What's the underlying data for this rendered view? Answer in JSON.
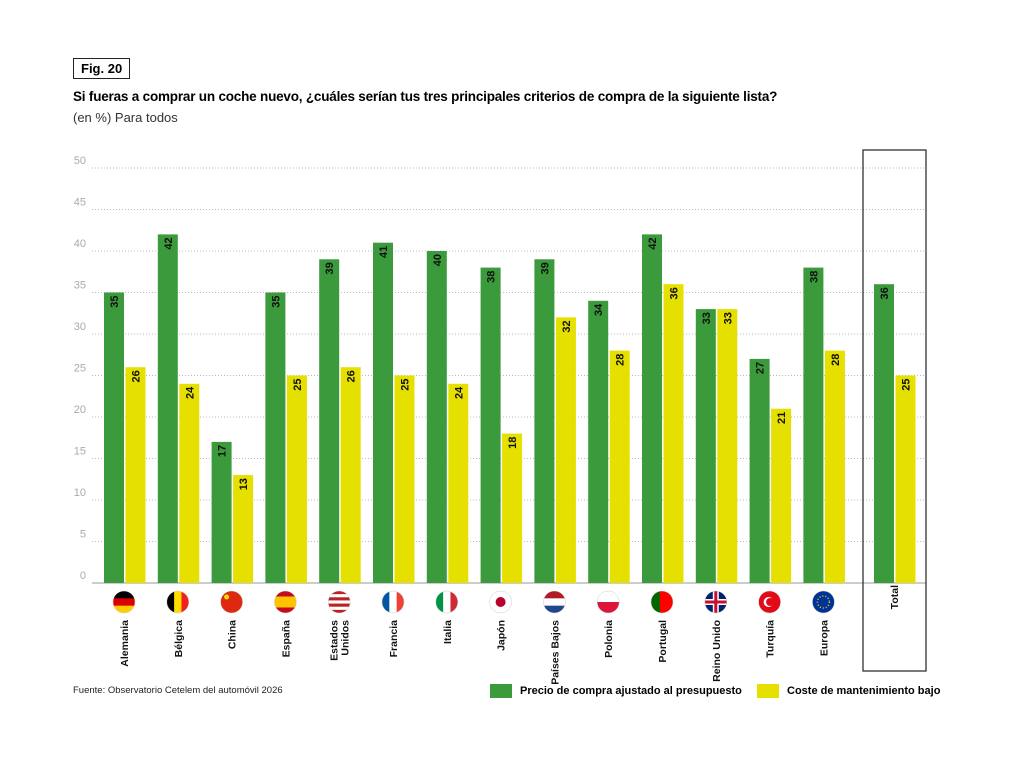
{
  "figure_label": "Fig. 20",
  "chart_data": {
    "type": "bar",
    "title": "Si fueras a comprar un coche nuevo, ¿cuáles serían tus tres principales criterios de compra de la siguiente lista?",
    "subtitle": "(en %) Para todos",
    "categories": [
      "Alemania",
      "Bélgica",
      "China",
      "España",
      "Estados Unidos",
      "Francia",
      "Italia",
      "Japón",
      "Países Bajos",
      "Polonia",
      "Portugal",
      "Reino Unido",
      "Turquía",
      "Europa",
      "Total"
    ],
    "category_icons": [
      "flag-germany",
      "flag-belgium",
      "flag-china",
      "flag-spain",
      "flag-usa",
      "flag-france",
      "flag-italy",
      "flag-japan",
      "flag-netherlands",
      "flag-poland",
      "flag-portugal",
      "flag-uk",
      "flag-turkey",
      "flag-eu",
      ""
    ],
    "series": [
      {
        "name": "Precio de compra ajustado al presupuesto",
        "color": "#3a9a3c",
        "values": [
          35,
          42,
          17,
          35,
          39,
          41,
          40,
          38,
          39,
          34,
          42,
          33,
          27,
          38,
          36
        ]
      },
      {
        "name": "Coste de mantenimiento bajo",
        "color": "#e5e000",
        "values": [
          26,
          24,
          13,
          25,
          26,
          25,
          24,
          18,
          32,
          28,
          36,
          33,
          21,
          28,
          25
        ]
      }
    ],
    "ylim": [
      0,
      50
    ],
    "yticks": [
      "0",
      "5",
      "10",
      "15",
      "20",
      "25",
      "30",
      "35",
      "40",
      "45",
      "50"
    ],
    "grid": true,
    "legend_position": "bottom-right",
    "highlighted_category": "Total",
    "data_labels": true
  },
  "source": "Fuente: Observatorio Cetelem del automóvil 2026"
}
